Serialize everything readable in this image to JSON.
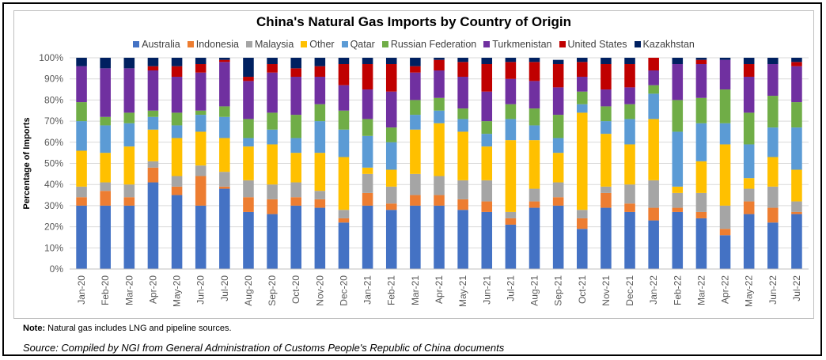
{
  "chart_data": {
    "type": "bar",
    "stacked": true,
    "title": "China's Natural Gas Imports by Country of Origin",
    "xlabel": "",
    "ylabel": "Percentage of Imports",
    "ylim": [
      0,
      100
    ],
    "yticks": [
      "0%",
      "10%",
      "20%",
      "30%",
      "40%",
      "50%",
      "60%",
      "70%",
      "80%",
      "90%",
      "100%"
    ],
    "legend_position": "top",
    "categories": [
      "Jan-20",
      "Feb-20",
      "Mar-20",
      "Apr-20",
      "May-20",
      "Jun-20",
      "Jul-20",
      "Aug-20",
      "Sep-20",
      "Oct-20",
      "Nov-20",
      "Dec-20",
      "Jan-21",
      "Feb-21",
      "Mar-21",
      "Apr-21",
      "May-21",
      "Jun-21",
      "Jul-21",
      "Aug-21",
      "Sep-21",
      "Oct-21",
      "Nov-21",
      "Dec-21",
      "Jan-22",
      "Feb-22",
      "Mar-22",
      "Apr-22",
      "May-22",
      "Jun-22",
      "Jul-22"
    ],
    "series": [
      {
        "name": "Australia",
        "color": "#4472C4",
        "values": [
          30,
          30,
          30,
          41,
          35,
          30,
          38,
          27,
          26,
          30,
          29,
          22,
          30,
          28,
          30,
          30,
          28,
          27,
          21,
          29,
          30,
          19,
          29,
          27,
          23,
          27,
          24,
          16,
          26,
          22,
          26
        ]
      },
      {
        "name": "Indonesia",
        "color": "#ED7D31",
        "values": [
          4,
          7,
          4,
          7,
          4,
          14,
          1,
          7,
          7,
          4,
          4,
          2,
          6,
          3,
          5,
          5,
          5,
          5,
          3,
          3,
          4,
          5,
          7,
          4,
          6,
          2,
          3,
          3,
          6,
          7,
          1
        ]
      },
      {
        "name": "Malaysia",
        "color": "#A5A5A5",
        "values": [
          5,
          4,
          6,
          3,
          5,
          5,
          7,
          8,
          7,
          7,
          4,
          4,
          9,
          8,
          10,
          9,
          9,
          10,
          3,
          6,
          7,
          4,
          3,
          9,
          13,
          7,
          9,
          11,
          6,
          10,
          5
        ]
      },
      {
        "name": "Other",
        "color": "#FFC000",
        "values": [
          17,
          14,
          18,
          15,
          18,
          16,
          16,
          16,
          19,
          14,
          18,
          25,
          3,
          8,
          21,
          25,
          23,
          16,
          34,
          23,
          14,
          46,
          25,
          19,
          29,
          3,
          15,
          29,
          5,
          14,
          15
        ]
      },
      {
        "name": "Qatar",
        "color": "#5B9BD5",
        "values": [
          14,
          13,
          11,
          6,
          6,
          8,
          10,
          4,
          7,
          7,
          15,
          13,
          15,
          13,
          7,
          6,
          6,
          6,
          10,
          7,
          7,
          4,
          6,
          12,
          12,
          26,
          18,
          10,
          16,
          14,
          20
        ]
      },
      {
        "name": "Russian Federation",
        "color": "#70AD47",
        "values": [
          9,
          4,
          5,
          3,
          6,
          2,
          5,
          9,
          8,
          11,
          8,
          9,
          8,
          7,
          7,
          6,
          5,
          6,
          7,
          8,
          11,
          6,
          7,
          7,
          4,
          15,
          12,
          16,
          15,
          15,
          12
        ]
      },
      {
        "name": "Turkmenistan",
        "color": "#7030A0",
        "values": [
          17,
          23,
          21,
          19,
          17,
          18,
          21,
          18,
          19,
          18,
          13,
          12,
          14,
          17,
          13,
          13,
          15,
          14,
          12,
          13,
          13,
          7,
          8,
          8,
          7,
          17,
          16,
          14,
          17,
          15,
          17
        ]
      },
      {
        "name": "United States",
        "color": "#C00000",
        "values": [
          0,
          0,
          0,
          2,
          5,
          4,
          1,
          2,
          4,
          4,
          5,
          10,
          12,
          13,
          3,
          5,
          7,
          13,
          8,
          9,
          11,
          7,
          12,
          11,
          6,
          0,
          2,
          0,
          6,
          0,
          2
        ]
      },
      {
        "name": "Kazakhstan",
        "color": "#002060",
        "values": [
          4,
          5,
          5,
          4,
          4,
          3,
          1,
          9,
          3,
          5,
          4,
          3,
          3,
          3,
          4,
          1,
          2,
          3,
          2,
          2,
          2,
          2,
          3,
          3,
          0,
          3,
          1,
          1,
          3,
          3,
          2
        ]
      }
    ]
  },
  "footer": {
    "note_label": "Note:",
    "note_text": " Natural gas includes LNG and pipeline sources.",
    "source": "Source: Compiled by NGI from General Administration of Customs People's Republic of China documents"
  }
}
